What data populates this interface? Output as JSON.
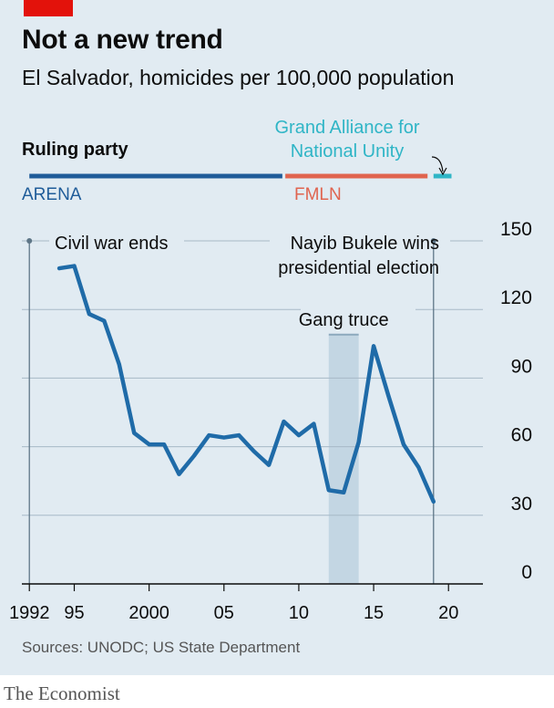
{
  "header": {
    "title": "Not a new trend",
    "subtitle": "El Salvador, homicides per 100,000 population"
  },
  "parties": {
    "label": "Ruling party",
    "items": [
      {
        "name": "ARENA",
        "from": 1992,
        "to": 2008.9,
        "color": "#1f5c99"
      },
      {
        "name": "FMLN",
        "from": 2009.1,
        "to": 2018.6,
        "color": "#e0644f"
      },
      {
        "name": "Grand Alliance for National Unity",
        "from": 2019,
        "to": 2020.2,
        "color": "#2fb5c6"
      }
    ]
  },
  "footer": {
    "source": "Sources: UNODC; US State Department",
    "brand": "The Economist"
  },
  "chart_data": {
    "type": "line",
    "x": [
      1994,
      1995,
      1996,
      1997,
      1998,
      1999,
      2000,
      2001,
      2002,
      2003,
      2004,
      2005,
      2006,
      2007,
      2008,
      2009,
      2010,
      2011,
      2012,
      2013,
      2014,
      2015,
      2016,
      2017,
      2018,
      2019
    ],
    "values": [
      138,
      139,
      118,
      115,
      96,
      66,
      61,
      61,
      48,
      56,
      65,
      64,
      65,
      58,
      52,
      71,
      65,
      70,
      41,
      40,
      62,
      104,
      82,
      61,
      51,
      36
    ],
    "xlim": [
      1991.5,
      2022.3
    ],
    "ylim": [
      0,
      150
    ],
    "xticks": [
      {
        "v": 1992,
        "label": "1992"
      },
      {
        "v": 1995,
        "label": "95"
      },
      {
        "v": 2000,
        "label": "2000"
      },
      {
        "v": 2005,
        "label": "05"
      },
      {
        "v": 2010,
        "label": "10"
      },
      {
        "v": 2015,
        "label": "15"
      },
      {
        "v": 2020,
        "label": "20"
      }
    ],
    "yticks": [
      0,
      30,
      60,
      90,
      120,
      150
    ],
    "ytick_labels": [
      "0",
      "30",
      "60",
      "90",
      "120",
      "150"
    ],
    "grid": true,
    "line_color": "#1f6ba8",
    "annotations": {
      "civil_war": {
        "x": 1992,
        "text": "Civil war ends"
      },
      "bukele": {
        "x": 2019,
        "lines": [
          "Nayib Bukele wins",
          "presidential election"
        ]
      },
      "truce": {
        "from": 2012,
        "to": 2014,
        "text": "Gang truce"
      }
    }
  }
}
